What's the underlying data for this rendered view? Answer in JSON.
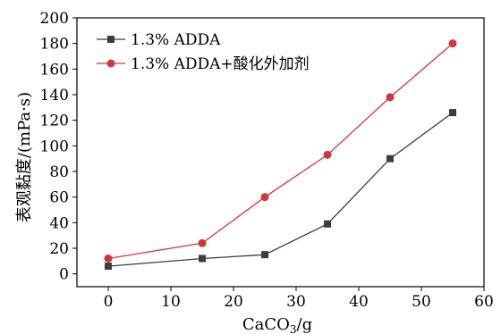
{
  "chart_data": {
    "type": "line",
    "xlabel": "CaCO",
    "xlabel_sub": "3",
    "xlabel_unit": "/g",
    "ylabel": "表观黏度/(mPa·s)",
    "xlim": [
      -5,
      60
    ],
    "ylim": [
      -10,
      200
    ],
    "xticks": [
      0,
      10,
      20,
      30,
      40,
      50,
      60
    ],
    "yticks": [
      0,
      20,
      40,
      60,
      80,
      100,
      120,
      140,
      160,
      180,
      200
    ],
    "grid": false,
    "legend_position": "top-left",
    "series": [
      {
        "name": "1.3% ADDA",
        "color": "#3d3d3d",
        "marker": "square",
        "x": [
          0,
          15,
          25,
          35,
          45,
          55
        ],
        "y": [
          6,
          12,
          15,
          39,
          90,
          126
        ]
      },
      {
        "name": "1.3% ADDA+酸化外加剂",
        "color": "#d0373f",
        "marker": "circle",
        "x": [
          0,
          15,
          25,
          35,
          45,
          55
        ],
        "y": [
          12,
          24,
          60,
          93,
          138,
          180
        ]
      }
    ]
  }
}
